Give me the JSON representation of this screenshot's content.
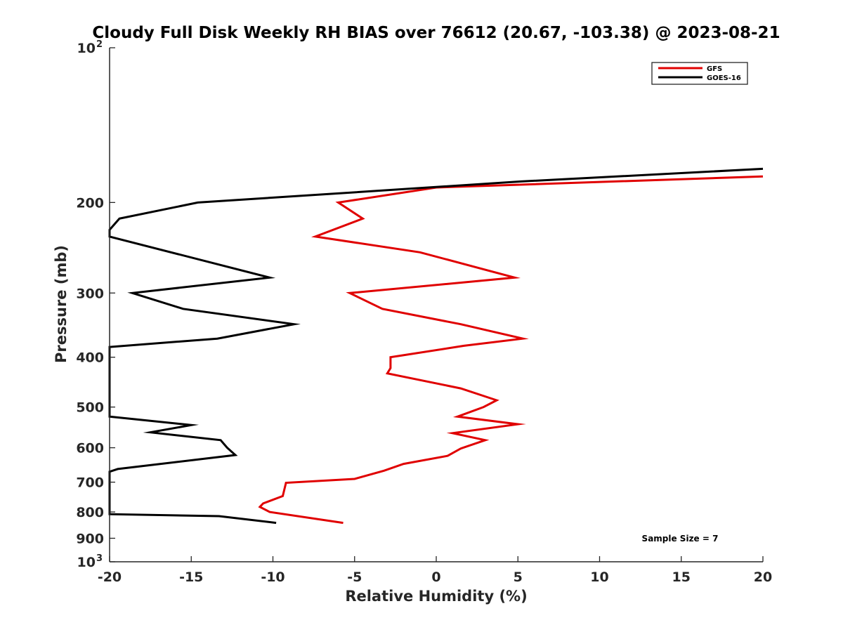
{
  "chart_data": {
    "type": "line",
    "title": "Cloudy Full Disk Weekly RH BIAS over 76612 (20.67, -103.38) @ 2023-08-21",
    "xlabel": "Relative Humidity (%)",
    "ylabel": "Pressure (mb)",
    "xlim": [
      -20,
      20
    ],
    "ylim": [
      100,
      1000
    ],
    "y_scale": "log",
    "y_reversed": true,
    "grid": false,
    "legend_position": "top-right",
    "xticks": [
      "-20",
      "-15",
      "-10",
      "-5",
      "0",
      "5",
      "10",
      "15",
      "20"
    ],
    "yticks": [
      {
        "value": 100,
        "base": "10",
        "exp": "2"
      },
      {
        "value": 200,
        "label": "200"
      },
      {
        "value": 300,
        "label": "300"
      },
      {
        "value": 400,
        "label": "400"
      },
      {
        "value": 500,
        "label": "500"
      },
      {
        "value": 600,
        "label": "600"
      },
      {
        "value": 700,
        "label": "700"
      },
      {
        "value": 800,
        "label": "800"
      },
      {
        "value": 900,
        "label": "900"
      },
      {
        "value": 1000,
        "base": "10",
        "exp": "3"
      }
    ],
    "series": [
      {
        "name": "GFS",
        "color": "#e00000",
        "points": [
          [
            20,
            178
          ],
          [
            0,
            187
          ],
          [
            -6,
            200
          ],
          [
            -4.5,
            215
          ],
          [
            -7.4,
            233
          ],
          [
            -1,
            250
          ],
          [
            4.8,
            280
          ],
          [
            -5.3,
            300
          ],
          [
            -3.3,
            322
          ],
          [
            1.5,
            345
          ],
          [
            5.3,
            368
          ],
          [
            1.7,
            380
          ],
          [
            -2.8,
            400
          ],
          [
            -2.8,
            420
          ],
          [
            -3,
            430
          ],
          [
            1.5,
            460
          ],
          [
            3.7,
            485
          ],
          [
            2.9,
            500
          ],
          [
            1.3,
            522
          ],
          [
            5,
            540
          ],
          [
            1,
            562
          ],
          [
            3,
            580
          ],
          [
            1.5,
            602
          ],
          [
            0.7,
            622
          ],
          [
            -2,
            645
          ],
          [
            -3.2,
            665
          ],
          [
            -5,
            690
          ],
          [
            -9.2,
            702
          ],
          [
            -9.4,
            745
          ],
          [
            -10.6,
            770
          ],
          [
            -10.8,
            782
          ],
          [
            -10.2,
            800
          ],
          [
            -5.7,
            840
          ]
        ]
      },
      {
        "name": "GOES-16",
        "color": "#000000",
        "points": [
          [
            20,
            172
          ],
          [
            5.2,
            182
          ],
          [
            -14.6,
            200
          ],
          [
            -19.4,
            215
          ],
          [
            -20,
            226
          ],
          [
            -20,
            233
          ],
          [
            -10.2,
            280
          ],
          [
            -18.6,
            300
          ],
          [
            -15.5,
            322
          ],
          [
            -8.7,
            345
          ],
          [
            -13.4,
            368
          ],
          [
            -20,
            382
          ],
          [
            -20,
            522
          ],
          [
            -15,
            542
          ],
          [
            -17.5,
            560
          ],
          [
            -13.2,
            580
          ],
          [
            -12.8,
            600
          ],
          [
            -12.3,
            620
          ],
          [
            -19.5,
            660
          ],
          [
            -20,
            668
          ],
          [
            -20,
            808
          ],
          [
            -13.3,
            815
          ],
          [
            -9.8,
            840
          ]
        ]
      }
    ],
    "annotation": "Sample Size = 7"
  }
}
